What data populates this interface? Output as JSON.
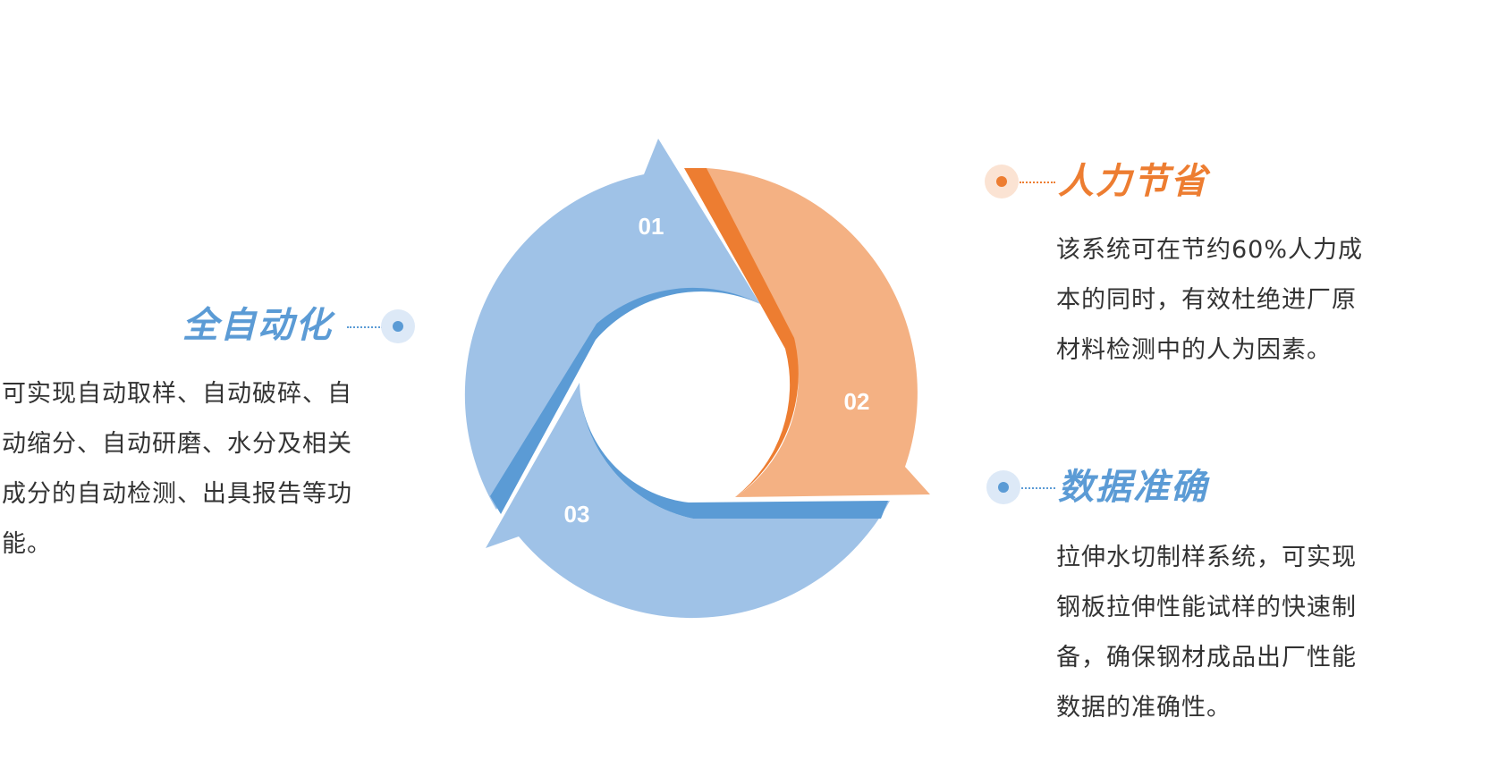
{
  "colors": {
    "blue_light": "#9fc2e7",
    "blue_dark": "#5b9bd5",
    "orange_light": "#f4b183",
    "orange_dark": "#ed7d31",
    "heading_blue": "#5b9bd5",
    "heading_orange": "#ed7d31",
    "dot_blue_bg": "#dde9f7",
    "dot_orange_bg": "#fbe3d3",
    "text": "#333333"
  },
  "cycle": {
    "segments": [
      {
        "number": "01"
      },
      {
        "number": "02"
      },
      {
        "number": "03"
      }
    ]
  },
  "left": {
    "heading": "全自动化",
    "lines": [
      "可实现自动取样、自动破碎、自",
      "动缩分、自动研磨、水分及相关",
      "成分的自动检测、出具报告等功",
      "能。"
    ]
  },
  "right_top": {
    "heading": "人力节省",
    "lines": [
      "该系统可在节约60%人力成",
      "本的同时，有效杜绝进厂原",
      "材料检测中的人为因素。"
    ]
  },
  "right_bottom": {
    "heading": "数据准确",
    "lines": [
      "拉伸水切制样系统，可实现",
      "钢板拉伸性能试样的快速制",
      "备，确保钢材成品出厂性能",
      "数据的准确性。"
    ]
  }
}
